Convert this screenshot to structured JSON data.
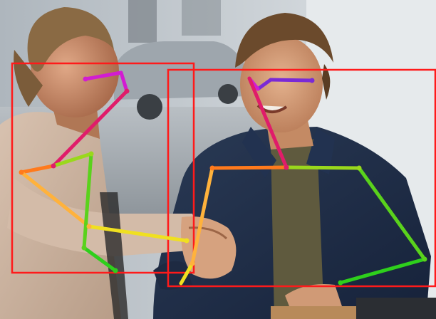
{
  "image": {
    "scene": "photo-two-men-shaking-hands",
    "annotation_type": "pose-estimation",
    "detections": [
      {
        "id": "person-left",
        "box_color": "#ff1a1a"
      },
      {
        "id": "person-right",
        "box_color": "#ff1a1a"
      }
    ],
    "keypoint_colors": {
      "face": "#d21cd2",
      "face_alt": "#7a2ad6",
      "neck": "#e01c6a",
      "right_shoulder": "#ff7a1c",
      "right_upper_arm": "#ffb23c",
      "right_forearm": "#f0e020",
      "left_shoulder": "#9ad81c",
      "left_upper_arm": "#5ad21c",
      "left_forearm": "#2ecf1c"
    }
  }
}
